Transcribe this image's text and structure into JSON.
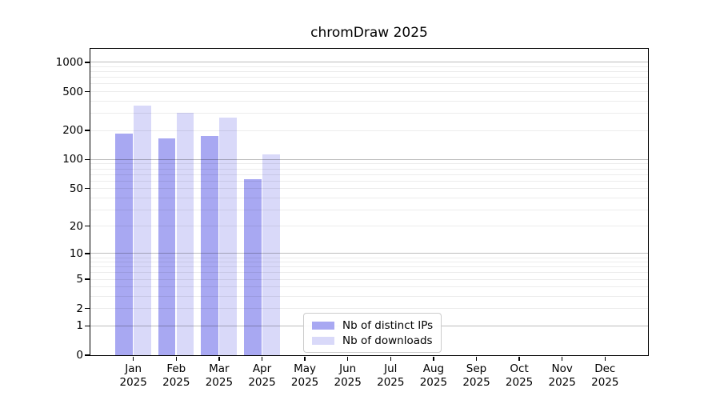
{
  "figure": {
    "title": "chromDraw 2025"
  },
  "chart_data": {
    "type": "bar",
    "title": "chromDraw 2025",
    "categories": [
      "Jan 2025",
      "Feb 2025",
      "Mar 2025",
      "Apr 2025",
      "May 2025",
      "Jun 2025",
      "Jul 2025",
      "Aug 2025",
      "Sep 2025",
      "Oct 2025",
      "Nov 2025",
      "Dec 2025"
    ],
    "series": [
      {
        "name": "Nb of distinct IPs",
        "color": "#a8a8f2",
        "values": [
          184,
          167,
          174,
          62,
          0,
          0,
          0,
          0,
          0,
          0,
          0,
          0
        ]
      },
      {
        "name": "Nb of downloads",
        "color": "#d9d9f9",
        "values": [
          361,
          304,
          272,
          114,
          0,
          0,
          0,
          0,
          0,
          0,
          0,
          0
        ]
      }
    ],
    "yscale": "log10(1+x)",
    "yticks": [
      0,
      1,
      2,
      5,
      10,
      20,
      50,
      100,
      200,
      500,
      1000
    ],
    "ylim": [
      0,
      1380
    ],
    "xlabel": "",
    "ylabel": "",
    "grid": {
      "major_values": [
        1,
        10,
        100,
        1000
      ],
      "minor_values": [
        2,
        3,
        4,
        5,
        6,
        7,
        8,
        9,
        20,
        30,
        40,
        50,
        60,
        70,
        80,
        90,
        200,
        300,
        400,
        500,
        600,
        700,
        800,
        900
      ]
    },
    "legend_position": "inside-bottom-center"
  }
}
